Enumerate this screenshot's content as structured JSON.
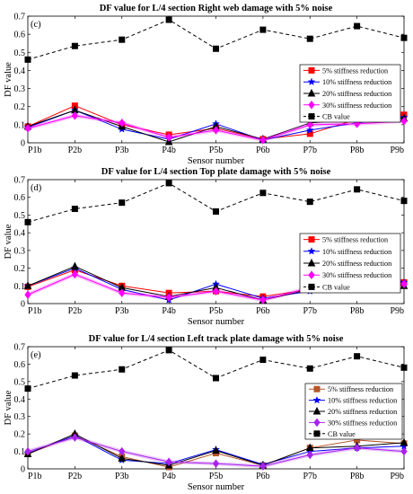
{
  "chart_data": [
    {
      "type": "line",
      "panel_label": "(c)",
      "title": "DF value  for L/4 section Right web damage with 5% noise",
      "xlabel": "Sensor number",
      "ylabel": "DF value",
      "ylim": [
        0,
        0.7
      ],
      "yticks": [
        "0",
        "0.1",
        "0.2",
        "0.3",
        "0.4",
        "0.5",
        "0.6",
        "0.7"
      ],
      "categories": [
        "P1b",
        "P2b",
        "P3b",
        "P4b",
        "P5b",
        "P6b",
        "P7b",
        "P8b",
        "P9b"
      ],
      "legend_position": "middle-right",
      "series": [
        {
          "name": "5% stiffness reduction",
          "color": "#ff0000",
          "marker": "square",
          "line": "solid",
          "values": [
            0.09,
            0.205,
            0.1,
            0.045,
            0.08,
            0.02,
            0.05,
            0.13,
            0.155
          ]
        },
        {
          "name": "10% stiffness reduction",
          "color": "#0000ff",
          "marker": "star",
          "line": "solid",
          "values": [
            0.085,
            0.18,
            0.075,
            0.02,
            0.105,
            0.015,
            0.07,
            0.11,
            0.14
          ]
        },
        {
          "name": "20% stiffness reduction",
          "color": "#000000",
          "marker": "triangle",
          "line": "solid",
          "values": [
            0.09,
            0.18,
            0.09,
            0.005,
            0.09,
            0.02,
            0.11,
            0.13,
            0.135
          ]
        },
        {
          "name": "30% stiffness reduction",
          "color": "#ff00ff",
          "marker": "diamond",
          "line": "solid",
          "values": [
            0.08,
            0.15,
            0.11,
            0.03,
            0.07,
            0.015,
            0.1,
            0.105,
            0.12
          ]
        },
        {
          "name": "CB value",
          "color": "#000000",
          "marker": "square",
          "line": "dashed",
          "values": [
            0.46,
            0.535,
            0.57,
            0.68,
            0.52,
            0.625,
            0.575,
            0.645,
            0.58
          ]
        }
      ]
    },
    {
      "type": "line",
      "panel_label": "(d)",
      "title": "DF value  for L/4 section Top plate damage with 5% noise",
      "xlabel": "Sensor number",
      "ylabel": "DF value",
      "ylim": [
        0,
        0.7
      ],
      "yticks": [
        "0",
        "0.1",
        "0.2",
        "0.3",
        "0.4",
        "0.5",
        "0.6",
        "0.7"
      ],
      "categories": [
        "P1b",
        "P2b",
        "P3b",
        "P4b",
        "P5b",
        "P6b",
        "P7b",
        "P8b",
        "P9b"
      ],
      "legend_position": "middle-right",
      "series": [
        {
          "name": "5% stiffness reduction",
          "color": "#ff0000",
          "marker": "square",
          "line": "solid",
          "values": [
            0.095,
            0.19,
            0.1,
            0.06,
            0.07,
            0.04,
            0.08,
            0.15,
            0.12
          ]
        },
        {
          "name": "10% stiffness reduction",
          "color": "#0000ff",
          "marker": "star",
          "line": "solid",
          "values": [
            0.1,
            0.2,
            0.08,
            0.02,
            0.11,
            0.03,
            0.07,
            0.14,
            0.12
          ]
        },
        {
          "name": "20% stiffness reduction",
          "color": "#000000",
          "marker": "triangle",
          "line": "solid",
          "values": [
            0.1,
            0.21,
            0.09,
            0.04,
            0.09,
            0.02,
            0.08,
            0.13,
            0.1
          ]
        },
        {
          "name": "30% stiffness reduction",
          "color": "#ff00ff",
          "marker": "diamond",
          "line": "solid",
          "values": [
            0.05,
            0.165,
            0.06,
            0.035,
            0.07,
            0.02,
            0.09,
            0.1,
            0.11
          ]
        },
        {
          "name": "CB value",
          "color": "#000000",
          "marker": "square",
          "line": "dashed",
          "values": [
            0.46,
            0.535,
            0.57,
            0.68,
            0.52,
            0.625,
            0.575,
            0.645,
            0.58
          ]
        }
      ]
    },
    {
      "type": "line",
      "panel_label": "(e)",
      "title": "DF value  for L/4 section Left track plate damage with 5% noise",
      "xlabel": "Sensor number",
      "ylabel": "DF value",
      "ylim": [
        0,
        0.7
      ],
      "yticks": [
        "0",
        "0.1",
        "0.2",
        "0.3",
        "0.4",
        "0.5",
        "0.6",
        "0.7"
      ],
      "categories": [
        "P1b",
        "P2b",
        "P3b",
        "P4b",
        "P5b",
        "P6b",
        "P7b",
        "P8b",
        "P9b"
      ],
      "legend_position": "lower-right",
      "series": [
        {
          "name": "5% stiffness reduction",
          "color": "#b5562a",
          "marker": "square",
          "line": "solid",
          "values": [
            0.085,
            0.19,
            0.07,
            0.01,
            0.09,
            0.02,
            0.12,
            0.165,
            0.145
          ]
        },
        {
          "name": "10% stiffness reduction",
          "color": "#0000ff",
          "marker": "star",
          "line": "solid",
          "values": [
            0.09,
            0.19,
            0.05,
            0.03,
            0.11,
            0.025,
            0.1,
            0.12,
            0.13
          ]
        },
        {
          "name": "20% stiffness reduction",
          "color": "#000000",
          "marker": "triangle",
          "line": "solid",
          "values": [
            0.085,
            0.2,
            0.06,
            0.02,
            0.105,
            0.02,
            0.12,
            0.13,
            0.15
          ]
        },
        {
          "name": "30% stiffness reduction",
          "color": "#aa22ee",
          "marker": "diamond",
          "line": "solid",
          "values": [
            0.1,
            0.18,
            0.1,
            0.04,
            0.03,
            0.015,
            0.08,
            0.12,
            0.1
          ]
        },
        {
          "name": "CB value",
          "color": "#000000",
          "marker": "square",
          "line": "dashed",
          "values": [
            0.46,
            0.535,
            0.57,
            0.68,
            0.52,
            0.625,
            0.575,
            0.645,
            0.58
          ]
        }
      ]
    }
  ]
}
